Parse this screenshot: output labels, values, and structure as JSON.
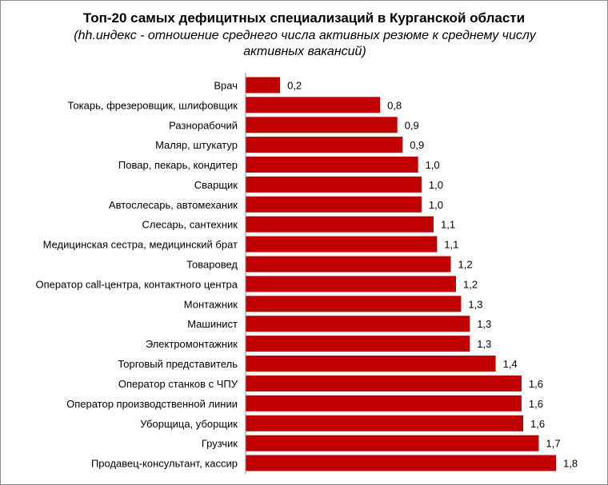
{
  "chart_data": {
    "type": "bar",
    "orientation": "horizontal",
    "title": "Топ-20 самых дефицитных специализаций в Курганской области",
    "subtitle": "(hh.индекс - отношение среднего числа активных резюме к среднему числу активных вакансий)",
    "xlabel": "",
    "ylabel": "",
    "xlim": [
      0,
      1.8
    ],
    "grid": false,
    "legend": "none",
    "bar_color": "#c00000",
    "categories": [
      "Врач",
      "Токарь, фрезеровщик, шлифовщик",
      "Разнорабочий",
      "Маляр, штукатур",
      "Повар, пекарь, кондитер",
      "Сварщик",
      "Автослесарь, автомеханик",
      "Слесарь, сантехник",
      "Медицинская сестра, медицинский брат",
      "Товаровед",
      "Оператор call-центра, контактного центра",
      "Монтажник",
      "Машинист",
      "Электромонтажник",
      "Торговый представитель",
      "Оператор станков с ЧПУ",
      "Оператор производственной линии",
      "Уборщица, уборщик",
      "Грузчик",
      "Продавец-консультант, кассир"
    ],
    "values": [
      0.2,
      0.8,
      0.9,
      0.9,
      1.0,
      1.0,
      1.0,
      1.1,
      1.1,
      1.2,
      1.2,
      1.3,
      1.3,
      1.3,
      1.4,
      1.6,
      1.6,
      1.6,
      1.7,
      1.8
    ],
    "precise_values": [
      0.2,
      0.78,
      0.88,
      0.91,
      1.0,
      1.02,
      1.02,
      1.09,
      1.11,
      1.19,
      1.22,
      1.25,
      1.3,
      1.3,
      1.45,
      1.6,
      1.6,
      1.61,
      1.7,
      1.8
    ],
    "data_labels": [
      "0,2",
      "0,8",
      "0,9",
      "0,9",
      "1,0",
      "1,0",
      "1,0",
      "1,1",
      "1,1",
      "1,2",
      "1,2",
      "1,3",
      "1,3",
      "1,3",
      "1,4",
      "1,6",
      "1,6",
      "1,6",
      "1,7",
      "1,8"
    ]
  }
}
